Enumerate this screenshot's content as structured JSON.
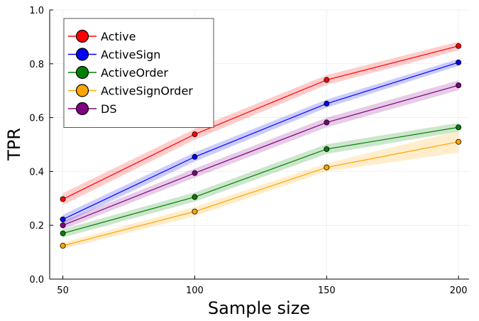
{
  "chart_data": {
    "type": "line",
    "xlabel": "Sample size",
    "ylabel": "TPR",
    "x": [
      50,
      100,
      150,
      200
    ],
    "xlim": [
      45,
      204
    ],
    "ylim": [
      0,
      1
    ],
    "xticks": [
      "50",
      "100",
      "150",
      "200"
    ],
    "yticks": [
      "0.0",
      "0.2",
      "0.4",
      "0.6",
      "0.8",
      "1.0"
    ],
    "grid": true,
    "legend_position": "top-left",
    "series": [
      {
        "name": "Active",
        "color": "#ff0000",
        "values": [
          0.297,
          0.538,
          0.74,
          0.866
        ],
        "lower": [
          0.275,
          0.518,
          0.722,
          0.85
        ],
        "upper": [
          0.319,
          0.558,
          0.758,
          0.882
        ]
      },
      {
        "name": "ActiveSign",
        "color": "#0000ff",
        "values": [
          0.222,
          0.454,
          0.652,
          0.805
        ],
        "lower": [
          0.205,
          0.437,
          0.637,
          0.792
        ],
        "upper": [
          0.239,
          0.471,
          0.667,
          0.818
        ]
      },
      {
        "name": "ActiveOrder",
        "color": "#008000",
        "values": [
          0.17,
          0.305,
          0.483,
          0.564
        ],
        "lower": [
          0.155,
          0.288,
          0.465,
          0.548
        ],
        "upper": [
          0.185,
          0.322,
          0.501,
          0.58
        ]
      },
      {
        "name": "ActiveSignOrder",
        "color": "#ffa500",
        "values": [
          0.124,
          0.251,
          0.415,
          0.51
        ],
        "lower": [
          0.112,
          0.234,
          0.4,
          0.47
        ],
        "upper": [
          0.136,
          0.268,
          0.43,
          0.55
        ]
      },
      {
        "name": "DS",
        "color": "#800080",
        "values": [
          0.2,
          0.394,
          0.582,
          0.72
        ],
        "lower": [
          0.185,
          0.377,
          0.564,
          0.702
        ],
        "upper": [
          0.215,
          0.411,
          0.6,
          0.738
        ]
      }
    ]
  }
}
